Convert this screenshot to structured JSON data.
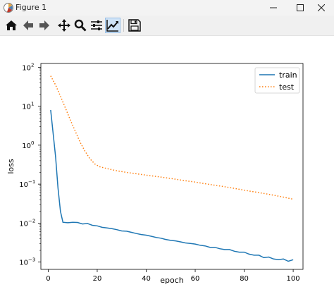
{
  "window": {
    "title": "Figure 1",
    "controls": [
      "minimize",
      "maximize",
      "close"
    ]
  },
  "toolbar": {
    "tools": [
      {
        "name": "home-icon"
      },
      {
        "name": "back-arrow-icon"
      },
      {
        "name": "forward-arrow-icon"
      },
      {
        "name": "pan-icon"
      },
      {
        "name": "zoom-icon"
      },
      {
        "name": "configure-subplots-icon"
      },
      {
        "name": "edit-axis-icon",
        "active": true
      },
      {
        "name": "save-icon"
      }
    ]
  },
  "chart_data": {
    "type": "line",
    "xlabel": "epoch",
    "ylabel": "loss",
    "xlim": [
      -3,
      104
    ],
    "ylim": [
      0.00065,
      125
    ],
    "yscale": "log",
    "xticks": [
      "0",
      "20",
      "40",
      "60",
      "80",
      "100"
    ],
    "yticks": [
      {
        "base": "10",
        "exp": "2"
      },
      {
        "base": "10",
        "exp": "1"
      },
      {
        "base": "10",
        "exp": "0"
      },
      {
        "base": "10",
        "exp": "−1"
      },
      {
        "base": "10",
        "exp": "−2"
      },
      {
        "base": "10",
        "exp": "−3"
      }
    ],
    "legend": "top-right",
    "series": [
      {
        "name": "train",
        "color": "#1f77b4",
        "style": "solid",
        "points": [
          [
            1,
            8.0
          ],
          [
            2,
            2.0
          ],
          [
            3,
            0.5
          ],
          [
            4,
            0.08
          ],
          [
            5,
            0.02
          ],
          [
            6,
            0.0105
          ],
          [
            8,
            0.0102
          ],
          [
            10,
            0.0105
          ],
          [
            12,
            0.0104
          ],
          [
            14,
            0.0095
          ],
          [
            16,
            0.0098
          ],
          [
            18,
            0.0088
          ],
          [
            20,
            0.0085
          ],
          [
            22,
            0.0078
          ],
          [
            24,
            0.0075
          ],
          [
            26,
            0.0072
          ],
          [
            28,
            0.0068
          ],
          [
            30,
            0.0063
          ],
          [
            32,
            0.0062
          ],
          [
            34,
            0.0058
          ],
          [
            36,
            0.0054
          ],
          [
            38,
            0.0051
          ],
          [
            40,
            0.0049
          ],
          [
            42,
            0.0046
          ],
          [
            44,
            0.0043
          ],
          [
            46,
            0.0041
          ],
          [
            48,
            0.0038
          ],
          [
            50,
            0.0036
          ],
          [
            52,
            0.0035
          ],
          [
            54,
            0.0033
          ],
          [
            56,
            0.0031
          ],
          [
            58,
            0.003
          ],
          [
            60,
            0.0029
          ],
          [
            62,
            0.0027
          ],
          [
            64,
            0.0026
          ],
          [
            66,
            0.0024
          ],
          [
            68,
            0.0024
          ],
          [
            70,
            0.0022
          ],
          [
            72,
            0.0021
          ],
          [
            74,
            0.0021
          ],
          [
            76,
            0.0019
          ],
          [
            78,
            0.0018
          ],
          [
            80,
            0.0018
          ],
          [
            82,
            0.0016
          ],
          [
            84,
            0.0015
          ],
          [
            86,
            0.0015
          ],
          [
            88,
            0.0013
          ],
          [
            90,
            0.00135
          ],
          [
            92,
            0.0012
          ],
          [
            94,
            0.00115
          ],
          [
            96,
            0.0012
          ],
          [
            98,
            0.00105
          ],
          [
            100,
            0.00115
          ]
        ]
      },
      {
        "name": "test",
        "color": "#ff7f0e",
        "style": "dotted",
        "points": [
          [
            1,
            60
          ],
          [
            3,
            35
          ],
          [
            5,
            18
          ],
          [
            7,
            9
          ],
          [
            9,
            4.5
          ],
          [
            11,
            2.3
          ],
          [
            13,
            1.2
          ],
          [
            15,
            0.7
          ],
          [
            17,
            0.45
          ],
          [
            19,
            0.33
          ],
          [
            21,
            0.28
          ],
          [
            24,
            0.25
          ],
          [
            28,
            0.22
          ],
          [
            32,
            0.2
          ],
          [
            36,
            0.185
          ],
          [
            40,
            0.17
          ],
          [
            45,
            0.155
          ],
          [
            50,
            0.14
          ],
          [
            55,
            0.125
          ],
          [
            60,
            0.113
          ],
          [
            65,
            0.1
          ],
          [
            70,
            0.09
          ],
          [
            75,
            0.08
          ],
          [
            80,
            0.07
          ],
          [
            85,
            0.062
          ],
          [
            90,
            0.055
          ],
          [
            95,
            0.048
          ],
          [
            100,
            0.041
          ]
        ]
      }
    ]
  }
}
